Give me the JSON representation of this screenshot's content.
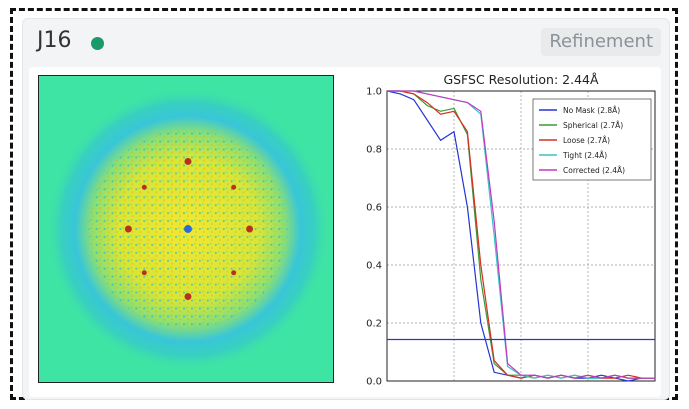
{
  "job": {
    "id": "J16",
    "status_color": "#1a9a6a",
    "type_badge": "Refinement"
  },
  "map_image": {
    "description_icon": "density-slice-image"
  },
  "chart_data": {
    "type": "line",
    "title": "GSFSC Resolution: 2.44Å",
    "xlabel": "",
    "ylabel": "",
    "ylim": [
      0,
      1
    ],
    "yticks": [
      "0.0",
      "0.2",
      "0.4",
      "0.6",
      "0.8",
      "1.0"
    ],
    "grid": true,
    "legend_position": "top-right",
    "threshold": 0.143,
    "threshold_color": "#2a39c8",
    "x": [
      0,
      0.05,
      0.1,
      0.15,
      0.2,
      0.25,
      0.3,
      0.35,
      0.4,
      0.45,
      0.5,
      0.55,
      0.6,
      0.65,
      0.7,
      0.75,
      0.8,
      0.85,
      0.9,
      0.95,
      1.0
    ],
    "series": [
      {
        "name": "No Mask (2.8Å)",
        "color": "#2434d6",
        "values": [
          1.0,
          0.99,
          0.97,
          0.9,
          0.83,
          0.86,
          0.6,
          0.2,
          0.03,
          0.02,
          0.01,
          0.02,
          0.01,
          0.02,
          0.01,
          0.01,
          0.02,
          0.01,
          0.0,
          0.01,
          0.01
        ]
      },
      {
        "name": "Spherical (2.7Å)",
        "color": "#3a9a3a",
        "values": [
          1.0,
          1.0,
          0.99,
          0.95,
          0.93,
          0.94,
          0.85,
          0.35,
          0.06,
          0.02,
          0.02,
          0.01,
          0.02,
          0.01,
          0.02,
          0.01,
          0.01,
          0.02,
          0.01,
          0.01,
          0.01
        ]
      },
      {
        "name": "Loose (2.7Å)",
        "color": "#d63020",
        "values": [
          1.0,
          1.0,
          0.99,
          0.96,
          0.92,
          0.93,
          0.86,
          0.4,
          0.07,
          0.02,
          0.01,
          0.02,
          0.01,
          0.02,
          0.01,
          0.02,
          0.01,
          0.01,
          0.02,
          0.01,
          0.01
        ]
      },
      {
        "name": "Tight (2.4Å)",
        "color": "#38c4c4",
        "values": [
          1.0,
          1.0,
          1.0,
          0.99,
          0.98,
          0.97,
          0.96,
          0.92,
          0.5,
          0.05,
          0.02,
          0.01,
          0.02,
          0.01,
          0.02,
          0.01,
          0.01,
          0.02,
          0.01,
          0.01,
          0.01
        ]
      },
      {
        "name": "Corrected (2.4Å)",
        "color": "#c03ac0",
        "values": [
          1.0,
          1.0,
          1.0,
          0.99,
          0.98,
          0.97,
          0.96,
          0.93,
          0.55,
          0.06,
          0.02,
          0.02,
          0.01,
          0.02,
          0.01,
          0.02,
          0.01,
          0.02,
          0.01,
          0.01,
          0.01
        ]
      }
    ]
  }
}
